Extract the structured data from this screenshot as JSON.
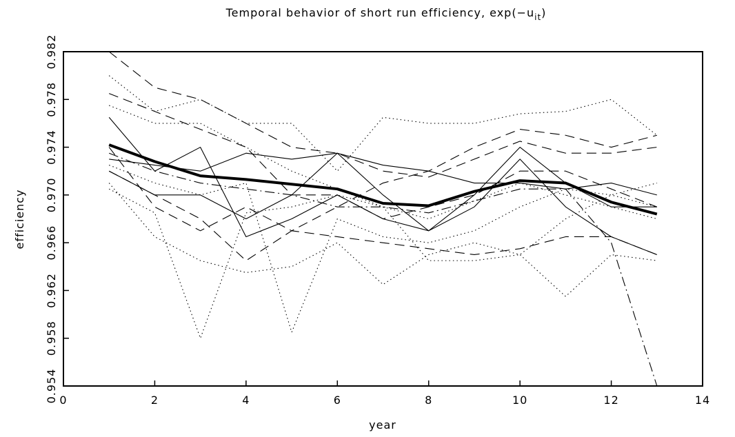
{
  "chart_data": {
    "type": "line",
    "title": "Temporal behavior of short run efficiency, exp(−u",
    "title_subscript": "it",
    "title_suffix": ")",
    "x_label": "year",
    "y_label": "efficiency",
    "x": [
      1,
      2,
      3,
      4,
      5,
      6,
      7,
      8,
      9,
      10,
      11,
      12,
      13
    ],
    "xlim": [
      0,
      14
    ],
    "xticks": [
      0,
      2,
      4,
      6,
      8,
      10,
      12,
      14
    ],
    "ylim": [
      0.954,
      0.982
    ],
    "yticks": [
      0.954,
      0.958,
      0.962,
      0.966,
      {
        "value": 0.97,
        "label": "0.970"
      },
      0.974,
      0.978,
      0.982
    ],
    "grid": false,
    "series": [
      {
        "color": "#000000",
        "style": "dotted",
        "values": [
          0.9705,
          0.9685,
          0.958,
          0.9685,
          0.969,
          0.97,
          0.969,
          0.968,
          0.9695,
          0.971,
          0.97,
          0.969,
          0.968
        ]
      },
      {
        "color": "#000000",
        "style": "dotted",
        "values": [
          0.9725,
          0.971,
          0.97,
          0.971,
          0.9585,
          0.968,
          0.9665,
          0.966,
          0.967,
          0.969,
          0.9705,
          0.97,
          0.969
        ]
      },
      {
        "color": "#000000",
        "style": "dashdot",
        "values": [
          0.9735,
          0.972,
          0.971,
          0.9705,
          0.97,
          0.969,
          0.969,
          0.9685,
          0.9695,
          0.9705,
          0.9705,
          0.966,
          0.954
        ]
      },
      {
        "color": "#000000",
        "style": "dashed",
        "values": [
          0.982,
          0.979,
          0.978,
          0.976,
          0.974,
          0.9735,
          0.972,
          0.9715,
          0.973,
          0.9745,
          0.9735,
          0.9735,
          0.974
        ]
      },
      {
        "color": "#000000",
        "style": "dotted",
        "values": [
          0.98,
          0.977,
          0.978,
          0.976,
          0.976,
          0.972,
          0.9765,
          0.976,
          0.976,
          0.9768,
          0.977,
          0.978,
          0.975
        ]
      },
      {
        "color": "#000000",
        "style": "dotted",
        "values": [
          0.971,
          0.9665,
          0.9645,
          0.9635,
          0.964,
          0.966,
          0.9625,
          0.965,
          0.966,
          0.965,
          0.9615,
          0.965,
          0.9645
        ]
      },
      {
        "color": "#000000",
        "style": "solid",
        "values": [
          0.9765,
          0.972,
          0.974,
          0.9665,
          0.968,
          0.97,
          0.968,
          0.967,
          0.969,
          0.973,
          0.969,
          0.9665,
          0.965
        ]
      },
      {
        "color": "#000000",
        "style": "dashed",
        "values": [
          0.972,
          0.97,
          0.968,
          0.9645,
          0.967,
          0.969,
          0.971,
          0.972,
          0.974,
          0.9755,
          0.975,
          0.974,
          0.975
        ]
      },
      {
        "color": "#000000",
        "style": "solid",
        "values": [
          0.973,
          0.9725,
          0.972,
          0.9735,
          0.973,
          0.9735,
          0.9725,
          0.972,
          0.971,
          0.971,
          0.9705,
          0.971,
          0.97
        ]
      },
      {
        "color": "#000000",
        "style": "dashed",
        "values": [
          0.974,
          0.969,
          0.967,
          0.969,
          0.967,
          0.9665,
          0.966,
          0.9655,
          0.965,
          0.9655,
          0.9665,
          0.9665,
          0.965
        ]
      },
      {
        "color": "#000000",
        "style": "solid",
        "values": [
          0.972,
          0.97,
          0.97,
          0.968,
          0.97,
          0.9735,
          0.97,
          0.967,
          0.97,
          0.974,
          0.971,
          0.969,
          0.969
        ]
      },
      {
        "color": "#000000",
        "style": "dotted",
        "values": [
          0.9775,
          0.976,
          0.976,
          0.974,
          0.972,
          0.9705,
          0.969,
          0.9645,
          0.9645,
          0.965,
          0.968,
          0.97,
          0.971
        ]
      },
      {
        "color": "#000000",
        "style": "dashed",
        "values": [
          0.9785,
          0.977,
          0.9755,
          0.974,
          0.97,
          0.97,
          0.968,
          0.969,
          0.97,
          0.972,
          0.972,
          0.9705,
          0.969
        ]
      },
      {
        "color": "#000000",
        "style": "solid",
        "linewidth": 4,
        "values": [
          0.9742,
          0.9728,
          0.9716,
          0.9713,
          0.9709,
          0.9705,
          0.9693,
          0.9691,
          0.9703,
          0.9712,
          0.971,
          0.9694,
          0.9684
        ]
      }
    ]
  }
}
